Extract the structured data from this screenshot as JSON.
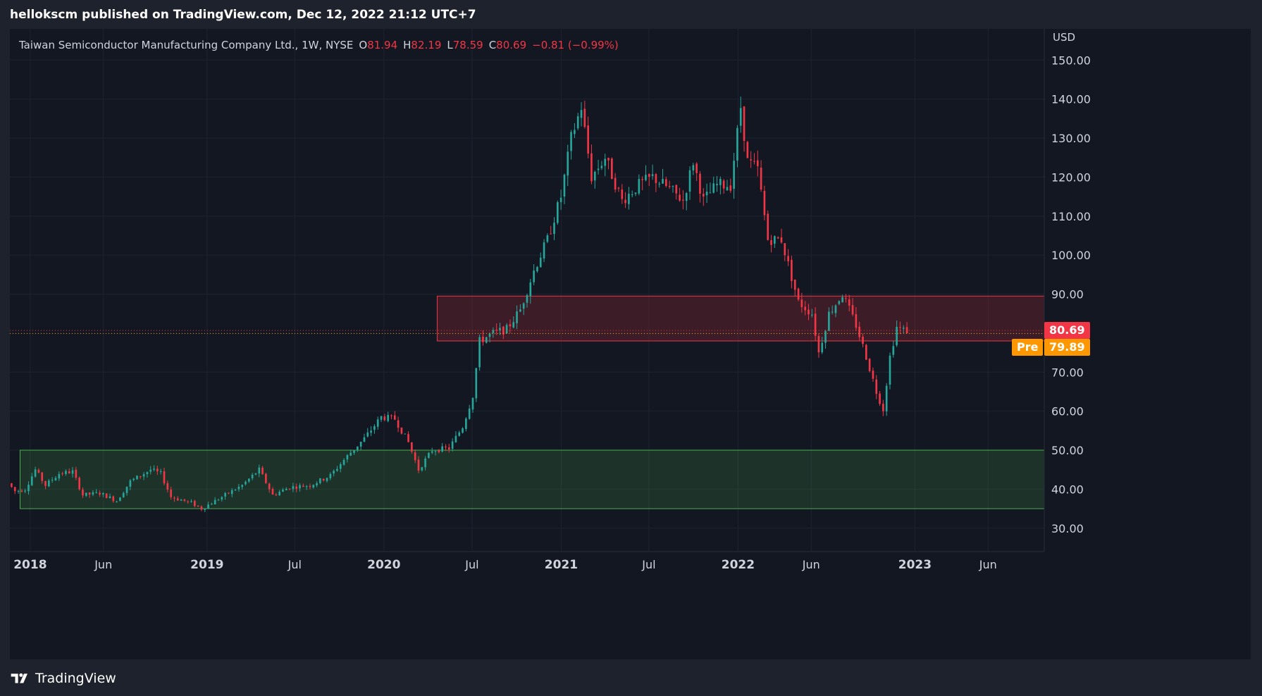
{
  "header": {
    "published_text": "hellokscm published on TradingView.com, Dec 12, 2022 21:12 UTC+7"
  },
  "legend": {
    "symbol_text": "Taiwan Semiconductor Manufacturing Company Ltd., 1W, NYSE",
    "open_key": "O",
    "open_value": "81.94",
    "high_key": "H",
    "high_value": "82.19",
    "low_key": "L",
    "low_value": "78.59",
    "close_key": "C",
    "close_value": "80.69",
    "change_value": "−0.81 (−0.99%)"
  },
  "price_labels": {
    "last_price": "80.69",
    "pre_label": "Pre",
    "pre_price": "79.89"
  },
  "footer": {
    "brand": "TradingView"
  },
  "colors": {
    "up": "#26a69a",
    "down": "#f23645",
    "background": "#131722",
    "grid": "#1f2330",
    "zone_red": "#f23645",
    "zone_green": "#4caf50",
    "pre_orange": "#ff9800",
    "axis_text": "#d1d4dc"
  },
  "chart_data": {
    "type": "candlestick",
    "interval": "1W",
    "currency": "USD",
    "y_unit_label": "USD",
    "ylim": [
      24,
      158
    ],
    "y_ticks": [
      30,
      40,
      50,
      60,
      70,
      80,
      90,
      100,
      110,
      120,
      130,
      140,
      150
    ],
    "y_tick_labels": [
      "30.00",
      "40.00",
      "50.00",
      "60.00",
      "70.00",
      "80.00",
      "90.00",
      "100.00",
      "110.00",
      "120.00",
      "130.00",
      "140.00",
      "150.00"
    ],
    "x_range": [
      "2017-11-20",
      "2023-09-25"
    ],
    "x_ticks": [
      {
        "date": "2018-01-01",
        "label": "2018",
        "major": true
      },
      {
        "date": "2018-06-01",
        "label": "Jun",
        "major": false
      },
      {
        "date": "2019-01-01",
        "label": "2019",
        "major": true
      },
      {
        "date": "2019-07-01",
        "label": "Jul",
        "major": false
      },
      {
        "date": "2020-01-01",
        "label": "2020",
        "major": true
      },
      {
        "date": "2020-07-01",
        "label": "Jul",
        "major": false
      },
      {
        "date": "2021-01-01",
        "label": "2021",
        "major": true
      },
      {
        "date": "2021-07-01",
        "label": "Jul",
        "major": false
      },
      {
        "date": "2022-01-01",
        "label": "2022",
        "major": true
      },
      {
        "date": "2022-06-01",
        "label": "Jun",
        "major": false
      },
      {
        "date": "2023-01-01",
        "label": "2023",
        "major": true
      },
      {
        "date": "2023-06-01",
        "label": "Jun",
        "major": false
      }
    ],
    "grid": true,
    "last_close": 80.69,
    "pre_market_price": 79.89,
    "zones": [
      {
        "kind": "resistance",
        "color": "red",
        "from_date": "2020-04-20",
        "price_low": 78.0,
        "price_high": 89.5
      },
      {
        "kind": "support",
        "color": "green",
        "from_date": "2017-12-11",
        "price_low": 35.0,
        "price_high": 50.0
      }
    ],
    "price_path": [
      [
        "2017-11-20",
        41.5
      ],
      [
        "2017-12-04",
        39.5
      ],
      [
        "2017-12-25",
        40.0
      ],
      [
        "2018-01-15",
        45.0
      ],
      [
        "2018-02-05",
        41.0
      ],
      [
        "2018-03-05",
        44.0
      ],
      [
        "2018-04-02",
        44.5
      ],
      [
        "2018-04-23",
        38.5
      ],
      [
        "2018-05-28",
        39.0
      ],
      [
        "2018-07-02",
        37.0
      ],
      [
        "2018-07-30",
        42.0
      ],
      [
        "2018-09-10",
        45.0
      ],
      [
        "2018-10-01",
        44.0
      ],
      [
        "2018-10-22",
        38.0
      ],
      [
        "2018-12-03",
        36.5
      ],
      [
        "2018-12-24",
        35.0
      ],
      [
        "2019-02-04",
        38.0
      ],
      [
        "2019-03-18",
        41.0
      ],
      [
        "2019-04-22",
        45.0
      ],
      [
        "2019-05-20",
        38.5
      ],
      [
        "2019-06-24",
        40.5
      ],
      [
        "2019-08-05",
        41.0
      ],
      [
        "2019-09-16",
        43.5
      ],
      [
        "2019-10-21",
        48.5
      ],
      [
        "2019-11-25",
        53.0
      ],
      [
        "2019-12-30",
        58.5
      ],
      [
        "2020-01-27",
        58.0
      ],
      [
        "2020-02-24",
        52.0
      ],
      [
        "2020-03-16",
        45.0
      ],
      [
        "2020-04-13",
        50.0
      ],
      [
        "2020-05-18",
        50.5
      ],
      [
        "2020-06-15",
        56.0
      ],
      [
        "2020-07-06",
        64.0
      ],
      [
        "2020-07-20",
        78.0
      ],
      [
        "2020-08-17",
        80.0
      ],
      [
        "2020-09-14",
        81.0
      ],
      [
        "2020-10-12",
        86.0
      ],
      [
        "2020-11-09",
        96.0
      ],
      [
        "2020-12-07",
        104.0
      ],
      [
        "2021-01-04",
        115.0
      ],
      [
        "2021-01-25",
        130.0
      ],
      [
        "2021-02-15",
        138.0
      ],
      [
        "2021-03-08",
        120.0
      ],
      [
        "2021-04-05",
        125.0
      ],
      [
        "2021-05-10",
        114.0
      ],
      [
        "2021-06-14",
        118.0
      ],
      [
        "2021-07-12",
        120.0
      ],
      [
        "2021-08-16",
        117.0
      ],
      [
        "2021-09-13",
        114.0
      ],
      [
        "2021-10-04",
        124.0
      ],
      [
        "2021-10-25",
        114.0
      ],
      [
        "2021-11-22",
        118.0
      ],
      [
        "2021-12-20",
        118.0
      ],
      [
        "2022-01-10",
        138.0
      ],
      [
        "2022-01-24",
        124.0
      ],
      [
        "2022-02-14",
        122.0
      ],
      [
        "2022-03-07",
        104.0
      ],
      [
        "2022-04-04",
        104.0
      ],
      [
        "2022-05-09",
        88.0
      ],
      [
        "2022-06-06",
        85.0
      ],
      [
        "2022-06-20",
        75.0
      ],
      [
        "2022-07-11",
        85.0
      ],
      [
        "2022-08-08",
        90.0
      ],
      [
        "2022-09-05",
        82.0
      ],
      [
        "2022-09-26",
        74.0
      ],
      [
        "2022-10-17",
        65.0
      ],
      [
        "2022-10-31",
        60.5
      ],
      [
        "2022-11-14",
        74.0
      ],
      [
        "2022-11-28",
        81.5
      ],
      [
        "2022-12-12",
        80.7
      ]
    ]
  }
}
